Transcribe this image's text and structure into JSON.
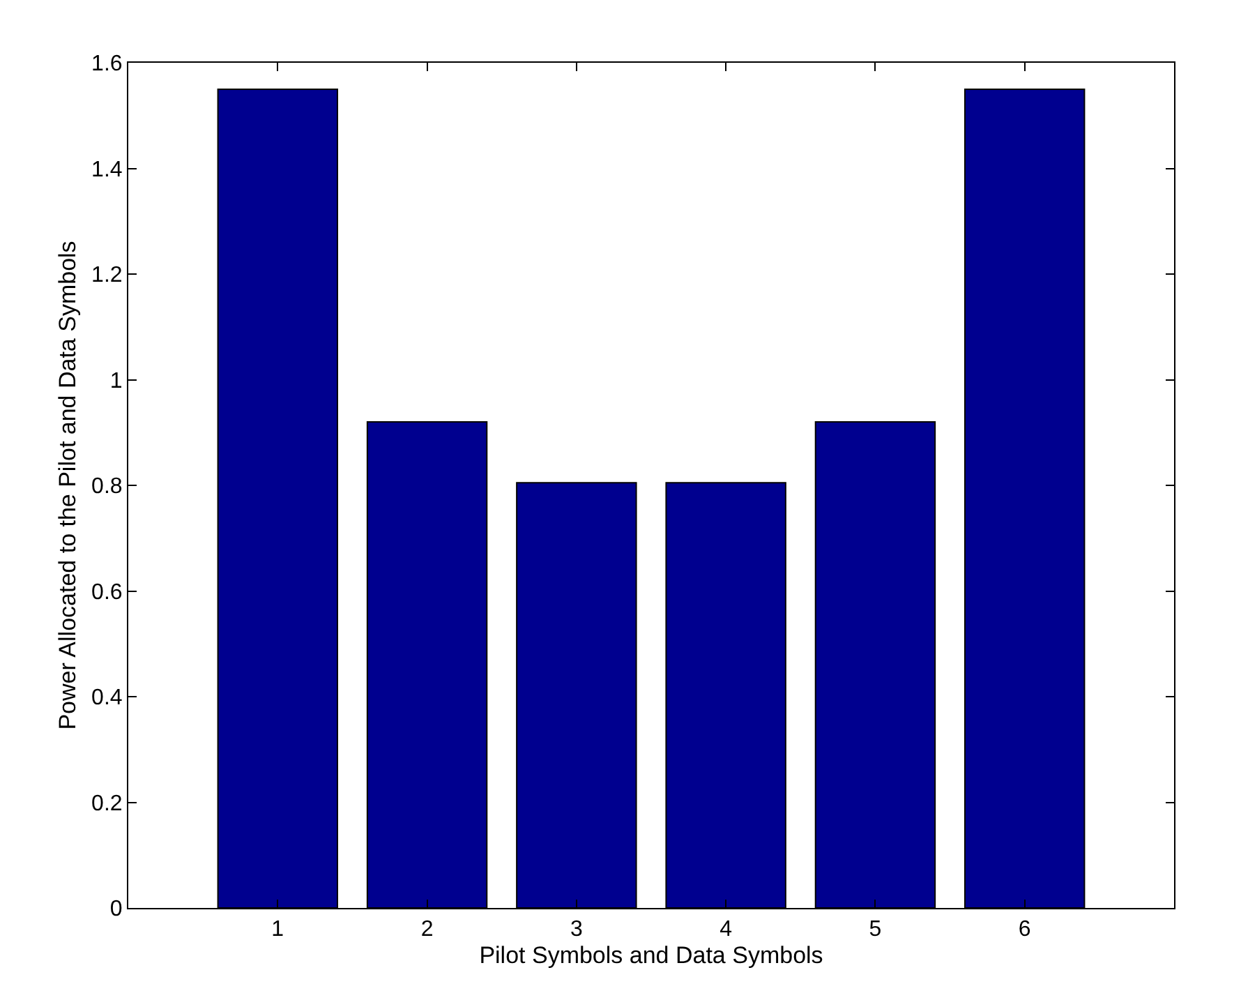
{
  "chart_data": {
    "type": "bar",
    "xlabel": "Pilot Symbols and Data Symbols",
    "ylabel": "Power Allocated to the Pilot and Data Symbols",
    "x": [
      1,
      2,
      3,
      4,
      5,
      6
    ],
    "values": [
      1.55,
      0.92,
      0.805,
      0.805,
      0.92,
      1.55
    ],
    "color": "#00008f",
    "xlim": [
      0,
      7
    ],
    "xticks": [
      1,
      2,
      3,
      4,
      5,
      6
    ],
    "ylim": [
      0,
      1.6
    ],
    "yticks": [
      0,
      0.2,
      0.4,
      0.6,
      0.8,
      1,
      1.2,
      1.4,
      1.6
    ]
  }
}
